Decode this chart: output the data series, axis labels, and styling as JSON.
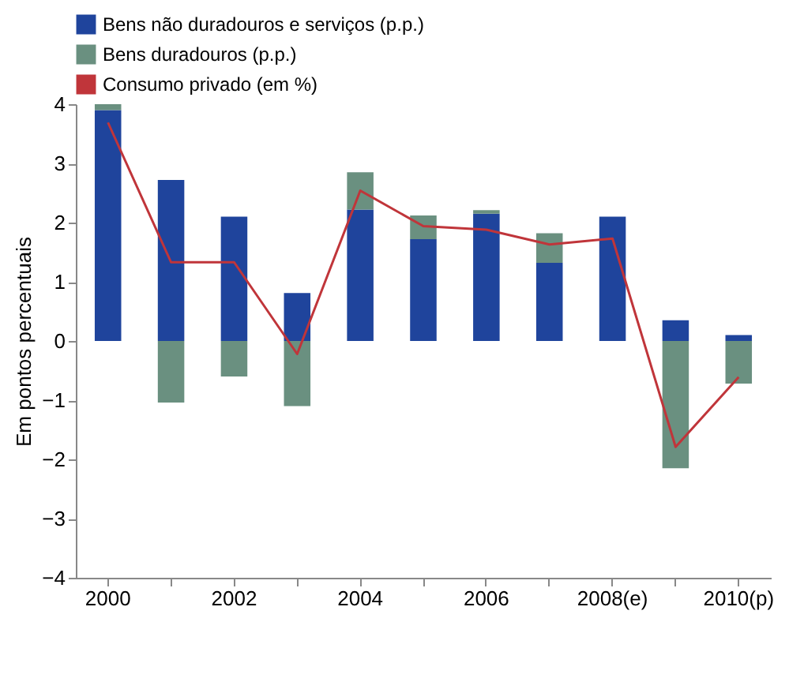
{
  "chart_data": {
    "type": "bar",
    "stacked": true,
    "ylabel": "Em pontos percentuais",
    "categories": [
      "2000",
      null,
      "2002",
      null,
      "2004",
      null,
      "2006",
      null,
      "2008(e)",
      null,
      "2010(p)"
    ],
    "series": [
      {
        "name": "Bens não duradouros e serviços (p.p.)",
        "color": "#1f449c",
        "values": [
          3.9,
          2.72,
          2.1,
          0.81,
          2.22,
          1.72,
          2.15,
          1.32,
          2.1,
          0.35,
          0.1
        ]
      },
      {
        "name": "Bens duradouros (p.p.)",
        "color": "#6a9080",
        "values": [
          0.1,
          -1.04,
          -0.6,
          -1.1,
          0.63,
          0.4,
          0.06,
          0.5,
          0,
          -2.15,
          -0.72
        ]
      },
      {
        "name": "Consumo privado (em %)",
        "type": "line",
        "color": "#c0353a",
        "values": [
          3.69,
          1.33,
          1.33,
          -0.22,
          2.54,
          1.94,
          1.88,
          1.63,
          1.73,
          -1.79,
          -0.61
        ]
      }
    ],
    "ylim": [
      -4,
      4
    ],
    "yticks": [
      -4,
      -3,
      -2,
      -1,
      0,
      1,
      2,
      3,
      4
    ],
    "grid": false,
    "legend": "top left",
    "marker": "none",
    "line_style": "solid"
  }
}
